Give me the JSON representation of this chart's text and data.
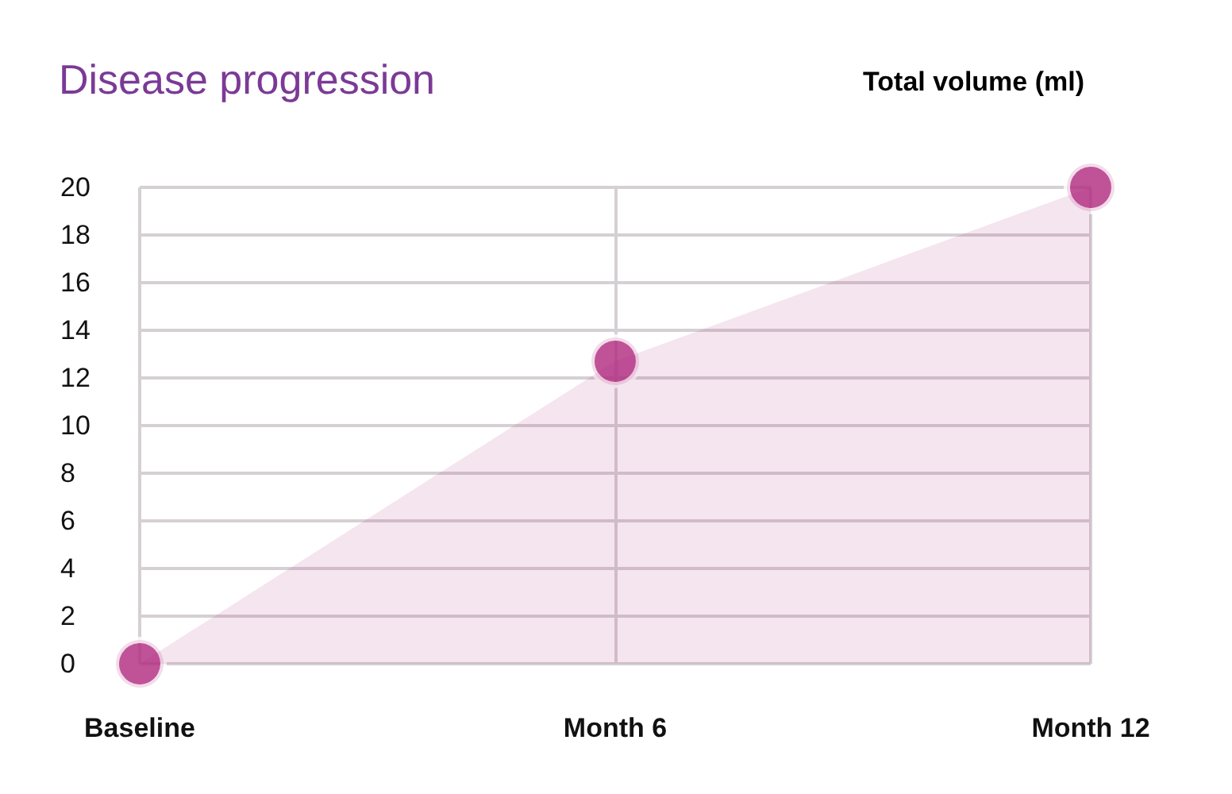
{
  "chart_data": {
    "type": "area",
    "title": "Disease progression",
    "ylabel": "Total volume (ml)",
    "categories": [
      "Baseline",
      "Month 6",
      "Month 12"
    ],
    "series": [
      {
        "color": "#b0287e",
        "values": [
          0,
          12.7,
          20
        ]
      },
      {
        "type": "scatter",
        "marker": "circle",
        "color": "#b0287e",
        "values": [
          0,
          12.7,
          20
        ]
      }
    ],
    "ylim": [
      0,
      20
    ],
    "yticks": [
      0,
      2,
      4,
      6,
      8,
      10,
      12,
      14,
      16,
      18,
      20
    ],
    "grid": true
  }
}
